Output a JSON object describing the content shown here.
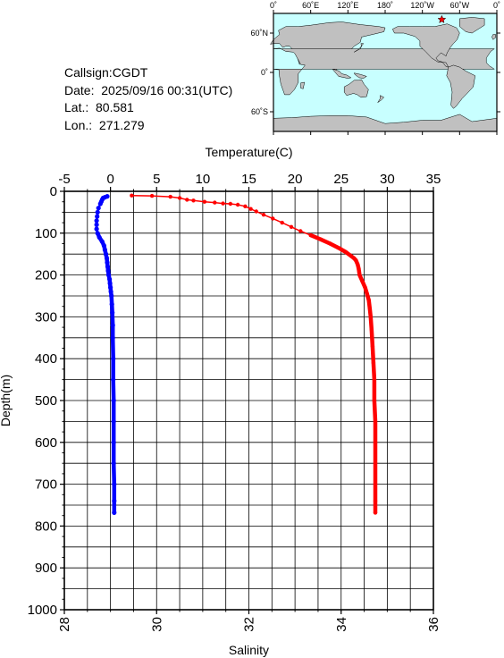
{
  "station": {
    "callsign": "Callsign:CGDT",
    "date": "Date:  2025/09/16 00:31(UTC)",
    "lat": "Lat.:  80.581",
    "lon": "Lon.:  271.279"
  },
  "map": {
    "lon_labels": [
      "0˚",
      "60˚E",
      "120˚E",
      "180˚",
      "120˚W",
      "60˚W",
      "0˚"
    ],
    "lat_labels": [
      "60˚N",
      "0˚",
      "60˚S"
    ],
    "marker_position": {
      "lon": 271.279,
      "lat": 80.581
    },
    "ocean_color": "#c8ffff",
    "land_color": "#c0c0c0",
    "marker_color": "#ff0000"
  },
  "chart_data": {
    "type": "scatter",
    "y_axis": {
      "label": "Depth(m)",
      "range": [
        0,
        1000
      ],
      "ticks": [
        "0",
        "100",
        "200",
        "300",
        "400",
        "500",
        "600",
        "700",
        "800",
        "900",
        "1000"
      ],
      "inverted": true
    },
    "x_axis_top": {
      "label": "Temperature(C)",
      "range": [
        -5,
        35
      ],
      "ticks": [
        "-5",
        "0",
        "5",
        "10",
        "15",
        "20",
        "25",
        "30",
        "35"
      ]
    },
    "x_axis_bottom": {
      "label": "Salinity",
      "range": [
        28,
        36
      ],
      "ticks": [
        "28",
        "30",
        "32",
        "34",
        "36"
      ]
    },
    "grid": true,
    "series": [
      {
        "name": "Temperature(C)",
        "axis": "top",
        "color": "#ff0000",
        "points": [
          [
            2.3,
            10
          ],
          [
            4.5,
            11
          ],
          [
            6.5,
            13
          ],
          [
            7.5,
            16
          ],
          [
            8.3,
            20
          ],
          [
            9.0,
            22
          ],
          [
            10.2,
            25
          ],
          [
            11.3,
            27
          ],
          [
            12.2,
            29
          ],
          [
            13.0,
            30
          ],
          [
            13.8,
            32
          ],
          [
            14.6,
            36
          ],
          [
            15.2,
            42
          ],
          [
            15.8,
            48
          ],
          [
            16.6,
            56
          ],
          [
            17.6,
            65
          ],
          [
            18.6,
            75
          ],
          [
            19.6,
            85
          ],
          [
            20.6,
            95
          ],
          [
            21.7,
            105
          ],
          [
            22.8,
            115
          ],
          [
            23.8,
            125
          ],
          [
            24.7,
            135
          ],
          [
            25.5,
            145
          ],
          [
            26.1,
            155
          ],
          [
            26.4,
            160
          ],
          [
            26.6,
            165
          ],
          [
            26.8,
            175
          ],
          [
            26.9,
            185
          ],
          [
            27.0,
            200
          ],
          [
            27.3,
            215
          ],
          [
            27.6,
            230
          ],
          [
            27.8,
            245
          ],
          [
            28.0,
            260
          ],
          [
            28.1,
            280
          ],
          [
            28.2,
            300
          ],
          [
            28.3,
            330
          ],
          [
            28.4,
            370
          ],
          [
            28.5,
            410
          ],
          [
            28.6,
            450
          ],
          [
            28.6,
            500
          ],
          [
            28.7,
            550
          ],
          [
            28.7,
            600
          ],
          [
            28.7,
            650
          ],
          [
            28.7,
            700
          ],
          [
            28.7,
            740
          ],
          [
            28.7,
            768
          ]
        ]
      },
      {
        "name": "Salinity",
        "axis": "bottom",
        "color": "#0000ff",
        "points": [
          [
            28.93,
            12
          ],
          [
            28.88,
            14
          ],
          [
            28.84,
            16
          ],
          [
            28.82,
            20
          ],
          [
            28.8,
            25
          ],
          [
            28.78,
            30
          ],
          [
            28.74,
            40
          ],
          [
            28.72,
            50
          ],
          [
            28.71,
            60
          ],
          [
            28.7,
            70
          ],
          [
            28.7,
            80
          ],
          [
            28.7,
            90
          ],
          [
            28.72,
            100
          ],
          [
            28.76,
            110
          ],
          [
            28.82,
            120
          ],
          [
            28.86,
            130
          ],
          [
            28.88,
            140
          ],
          [
            28.9,
            150
          ],
          [
            28.92,
            160
          ],
          [
            28.93,
            170
          ],
          [
            28.94,
            180
          ],
          [
            28.95,
            190
          ],
          [
            28.96,
            200
          ],
          [
            28.98,
            210
          ],
          [
            28.99,
            220
          ],
          [
            29.0,
            230
          ],
          [
            29.01,
            240
          ],
          [
            29.02,
            250
          ],
          [
            29.03,
            270
          ],
          [
            29.04,
            290
          ],
          [
            29.05,
            320
          ],
          [
            29.05,
            350
          ],
          [
            29.06,
            400
          ],
          [
            29.06,
            450
          ],
          [
            29.07,
            500
          ],
          [
            29.07,
            550
          ],
          [
            29.07,
            600
          ],
          [
            29.07,
            650
          ],
          [
            29.08,
            700
          ],
          [
            29.08,
            740
          ],
          [
            29.08,
            768
          ]
        ]
      }
    ]
  }
}
